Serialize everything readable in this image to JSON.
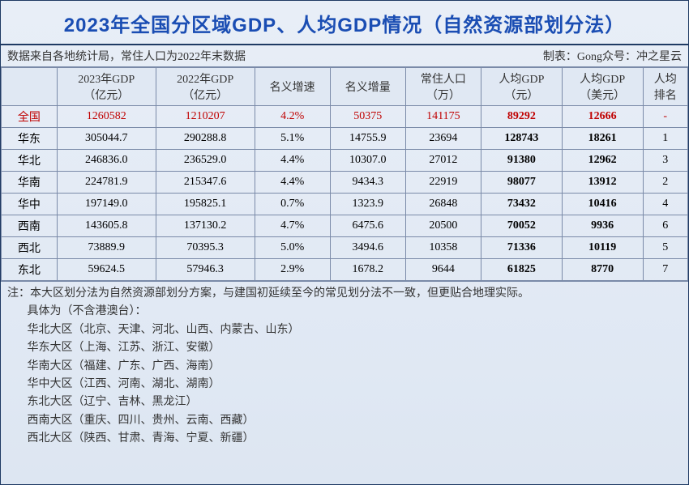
{
  "title": "2023年全国分区域GDP、人均GDP情况（自然资源部划分法）",
  "subtitle_left": "数据来自各地统计局，常住人口为2022年末数据",
  "subtitle_right": "制表：Gong众号：冲之星云",
  "colors": {
    "title_color": "#1a4db3",
    "border_color": "#1f3a63",
    "grid_color": "#7a8aa8",
    "background_top": "#e8eef7",
    "background_bottom": "#dde6f2",
    "national_row_color": "#c00000",
    "text_color": "#333333"
  },
  "typography": {
    "title_fontsize": 24,
    "body_fontsize": 14,
    "title_fontfamily": "SimHei",
    "body_fontfamily": "SimSun"
  },
  "columns": [
    {
      "line1": "",
      "line2": ""
    },
    {
      "line1": "2023年GDP",
      "line2": "（亿元）"
    },
    {
      "line1": "2022年GDP",
      "line2": "（亿元）"
    },
    {
      "line1": "名义增速",
      "line2": ""
    },
    {
      "line1": "名义增量",
      "line2": ""
    },
    {
      "line1": "常住人口",
      "line2": "（万）"
    },
    {
      "line1": "人均GDP",
      "line2": "（元）"
    },
    {
      "line1": "人均GDP",
      "line2": "（美元）"
    },
    {
      "line1": "人均",
      "line2": "排名"
    }
  ],
  "national_row": {
    "region": "全国",
    "gdp2023": "1260582",
    "gdp2022": "1210207",
    "growth": "4.2%",
    "increment": "50375",
    "population": "141175",
    "pc_gdp_cny": "89292",
    "pc_gdp_usd": "12666",
    "rank": "-"
  },
  "rows": [
    {
      "region": "华东",
      "gdp2023": "305044.7",
      "gdp2022": "290288.8",
      "growth": "5.1%",
      "increment": "14755.9",
      "population": "23694",
      "pc_gdp_cny": "128743",
      "pc_gdp_usd": "18261",
      "rank": "1"
    },
    {
      "region": "华北",
      "gdp2023": "246836.0",
      "gdp2022": "236529.0",
      "growth": "4.4%",
      "increment": "10307.0",
      "population": "27012",
      "pc_gdp_cny": "91380",
      "pc_gdp_usd": "12962",
      "rank": "3"
    },
    {
      "region": "华南",
      "gdp2023": "224781.9",
      "gdp2022": "215347.6",
      "growth": "4.4%",
      "increment": "9434.3",
      "population": "22919",
      "pc_gdp_cny": "98077",
      "pc_gdp_usd": "13912",
      "rank": "2"
    },
    {
      "region": "华中",
      "gdp2023": "197149.0",
      "gdp2022": "195825.1",
      "growth": "0.7%",
      "increment": "1323.9",
      "population": "26848",
      "pc_gdp_cny": "73432",
      "pc_gdp_usd": "10416",
      "rank": "4"
    },
    {
      "region": "西南",
      "gdp2023": "143605.8",
      "gdp2022": "137130.2",
      "growth": "4.7%",
      "increment": "6475.6",
      "population": "20500",
      "pc_gdp_cny": "70052",
      "pc_gdp_usd": "9936",
      "rank": "6"
    },
    {
      "region": "西北",
      "gdp2023": "73889.9",
      "gdp2022": "70395.3",
      "growth": "5.0%",
      "increment": "3494.6",
      "population": "10358",
      "pc_gdp_cny": "71336",
      "pc_gdp_usd": "10119",
      "rank": "5"
    },
    {
      "region": "东北",
      "gdp2023": "59624.5",
      "gdp2022": "57946.3",
      "growth": "2.9%",
      "increment": "1678.2",
      "population": "9644",
      "pc_gdp_cny": "61825",
      "pc_gdp_usd": "8770",
      "rank": "7"
    }
  ],
  "notes": [
    "注：本大区划分法为自然资源部划分方案，与建国初延续至今的常见划分法不一致，但更贴合地理实际。",
    "       具体为（不含港澳台）：",
    "       华北大区（北京、天津、河北、山西、内蒙古、山东）",
    "       华东大区（上海、江苏、浙江、安徽）",
    "       华南大区（福建、广东、广西、海南）",
    "       华中大区（江西、河南、湖北、湖南）",
    "       东北大区（辽宁、吉林、黑龙江）",
    "       西南大区（重庆、四川、贵州、云南、西藏）",
    "       西北大区（陕西、甘肃、青海、宁夏、新疆）"
  ]
}
